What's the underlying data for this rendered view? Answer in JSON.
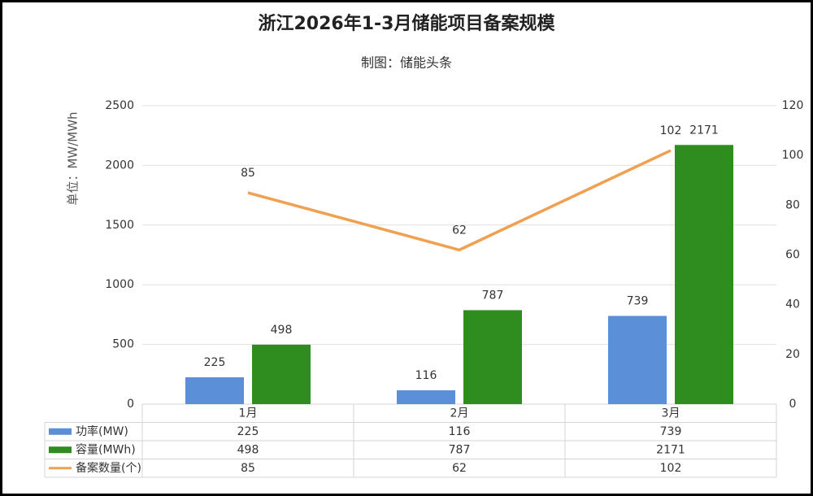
{
  "chart_data": {
    "type": "bar",
    "title": "浙江2026年1-3月储能项目备案规模",
    "subtitle": "制图：储能头条",
    "y_label": "单位：MW/MWh",
    "categories": [
      "1月",
      "2月",
      "3月"
    ],
    "series": [
      {
        "name": "功率(MW)",
        "color": "#5b8fd8",
        "values": [
          225,
          116,
          739
        ]
      },
      {
        "name": "容量(MWh)",
        "color": "#2f8c1f",
        "values": [
          498,
          787,
          2171
        ]
      },
      {
        "name": "备案数量(个)",
        "color": "#f0a050",
        "type": "line",
        "axis": "y2",
        "values": [
          85,
          62,
          102
        ]
      }
    ],
    "ylim": [
      0,
      2500
    ],
    "yticks": [
      0,
      500,
      1000,
      1500,
      2000,
      2500
    ],
    "y2lim": [
      0,
      120
    ],
    "y2ticks": [
      0,
      20,
      40,
      60,
      80,
      100,
      120
    ],
    "grid": true,
    "legend": "table"
  }
}
